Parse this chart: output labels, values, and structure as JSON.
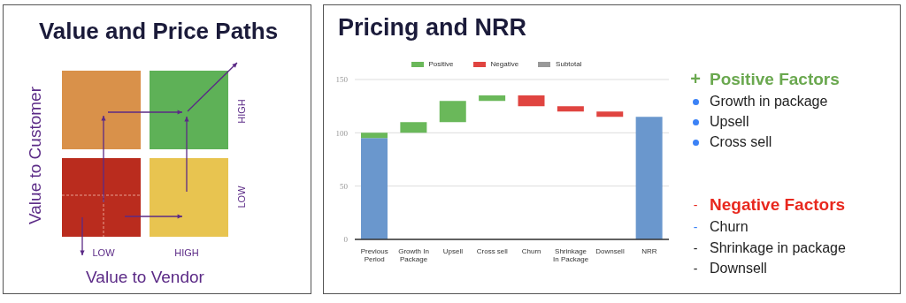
{
  "chart_data": [
    {
      "type": "other",
      "title": "Value and Price Paths",
      "xlabel": "Value to Vendor",
      "ylabel": "Value to Customer",
      "annotations": [
        "LOW",
        "HIGH",
        "HIGH",
        "LOW"
      ]
    },
    {
      "type": "bar",
      "title": "Pricing and NRR",
      "categories": [
        "Previous Period",
        "Growth In Package",
        "Upsell",
        "Cross sell",
        "Churn",
        "Shrinkage In Package",
        "Downsell",
        "NRR"
      ],
      "series": [
        {
          "color": "#6a97cd",
          "values": [
            95,
            null,
            null,
            null,
            null,
            null,
            null,
            115
          ]
        },
        {
          "name": "Positive",
          "color": "#6ab85a",
          "values": [
            5,
            10,
            20,
            5,
            null,
            null,
            null,
            null
          ],
          "base": [
            95,
            100,
            110,
            130,
            null,
            null,
            null,
            null
          ]
        },
        {
          "name": "Negative",
          "color": "#e04440",
          "values": [
            null,
            null,
            null,
            null,
            -10,
            -5,
            -5,
            null
          ],
          "base": [
            null,
            null,
            null,
            null,
            135,
            125,
            120,
            null
          ]
        },
        {
          "name": "Subtotal",
          "color": "#999999",
          "values": [
            null,
            null,
            null,
            null,
            null,
            null,
            null,
            null
          ]
        }
      ],
      "ylim": [
        0,
        150
      ],
      "yticks": [
        0,
        50,
        100,
        150
      ],
      "grid": "y",
      "legend": "top"
    },
    {
      "type": "other",
      "annotations": [
        "+",
        "Positive Factors",
        "Growth in package",
        "Upsell",
        "Cross sell",
        "-",
        "Negative Factors",
        "-",
        "Churn",
        "-",
        "Shrinkage in package",
        "-",
        "Downsell"
      ]
    }
  ]
}
